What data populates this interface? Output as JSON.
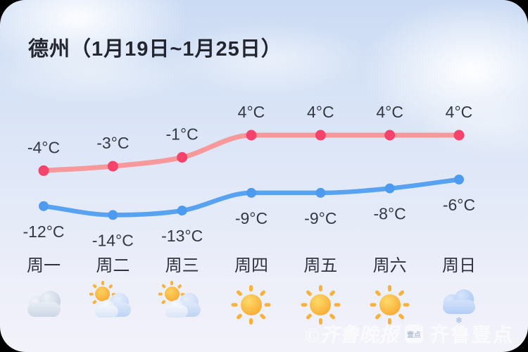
{
  "title": "德州（1月19日~1月25日）",
  "watermark": {
    "paper": "©齐鲁晚报",
    "badge": "壹点",
    "app": "齐鲁壹点"
  },
  "colors": {
    "high_line": "#F7989A",
    "high_point": "#F5436C",
    "low_line": "#57A2F1",
    "low_point": "#4C9BEF",
    "label_text": "#343842",
    "title_text": "#23262F"
  },
  "chart_data": {
    "type": "line",
    "title": "德州（1月19日~1月25日）",
    "unit": "°C",
    "categories": [
      "周一",
      "周二",
      "周三",
      "周四",
      "周五",
      "周六",
      "周日"
    ],
    "series": [
      {
        "name": "high",
        "values": [
          -4,
          -3,
          -1,
          4,
          4,
          4,
          4
        ],
        "labels": [
          "-4°C",
          "-3°C",
          "-1°C",
          "4°C",
          "4°C",
          "4°C",
          "4°C"
        ],
        "line_color": "#F7989A",
        "point_color": "#F5436C"
      },
      {
        "name": "low",
        "values": [
          -12,
          -14,
          -13,
          -9,
          -9,
          -8,
          -6
        ],
        "labels": [
          "-12°C",
          "-14°C",
          "-13°C",
          "-9°C",
          "-9°C",
          "-8°C",
          "-6°C"
        ],
        "line_color": "#57A2F1",
        "point_color": "#4C9BEF"
      }
    ],
    "weather": [
      "cloudy",
      "partly-cloudy",
      "partly-cloudy",
      "sunny",
      "sunny",
      "sunny",
      "light-snow"
    ],
    "grid": false,
    "legend_position": "none",
    "ylim": [
      -16,
      6
    ]
  }
}
